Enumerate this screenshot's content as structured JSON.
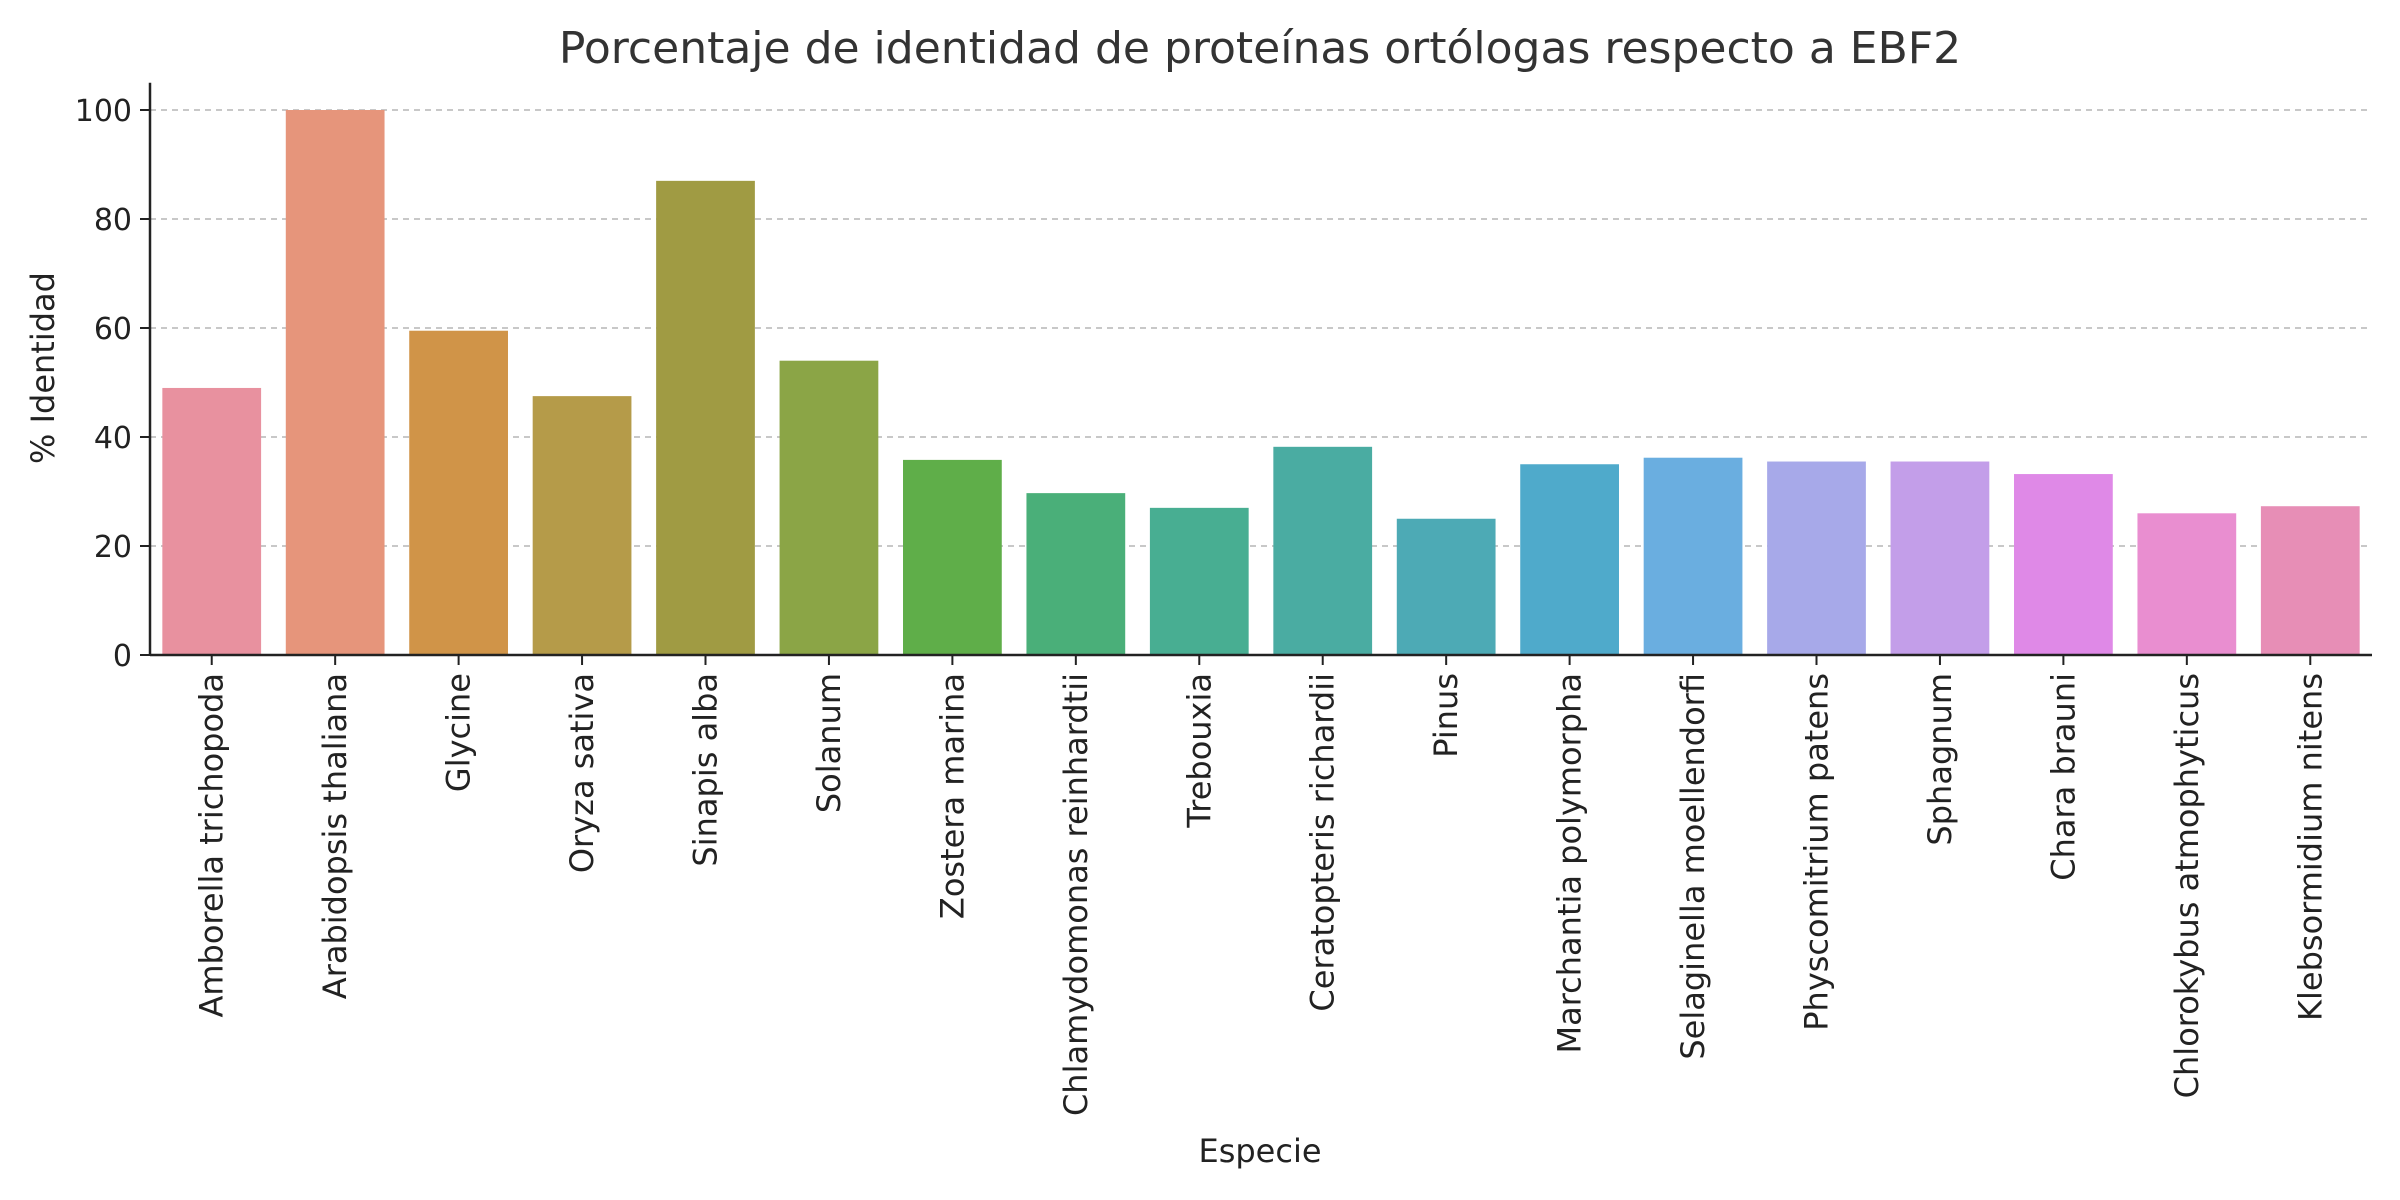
{
  "chart_data": {
    "type": "bar",
    "title": "Porcentaje de identidad de proteínas ortólogas respecto a EBF2",
    "xlabel": "Especie",
    "ylabel": "% Identidad",
    "ylim": [
      0,
      105
    ],
    "yticks": [
      0,
      20,
      40,
      60,
      80,
      100
    ],
    "grid": "y-dashed",
    "legend": "none",
    "categories": [
      "Amborella trichopoda",
      "Arabidopsis thaliana",
      "Glycine",
      "Oryza sativa",
      "Sinapis alba",
      "Solanum",
      "Zostera marina",
      "Chlamydomonas reinhardtii",
      "Trebouxia",
      "Ceratopteris richardii",
      "Pinus",
      "Marchantia polymorpha",
      "Selaginella moellendorfi",
      "Physcomitrium patens",
      "Sphagnum",
      "Chara brauni",
      "Chlorokybus atmophyticus",
      "Klebsormidium nitens"
    ],
    "values": [
      49,
      100,
      59.5,
      47.5,
      87,
      54,
      35.8,
      29.7,
      27,
      38.2,
      25,
      35,
      36.2,
      35.5,
      35.5,
      33.2,
      26,
      27.3
    ],
    "colors": [
      "#e8919f",
      "#e6957b",
      "#d09448",
      "#b59b49",
      "#a09b43",
      "#8ba546",
      "#5fae49",
      "#4aaf79",
      "#48ae92",
      "#4aaca2",
      "#4daab5",
      "#4faacb",
      "#6aaee0",
      "#a7a9e9",
      "#c39ee9",
      "#df89e7",
      "#e98ed0",
      "#e78eb6"
    ]
  }
}
